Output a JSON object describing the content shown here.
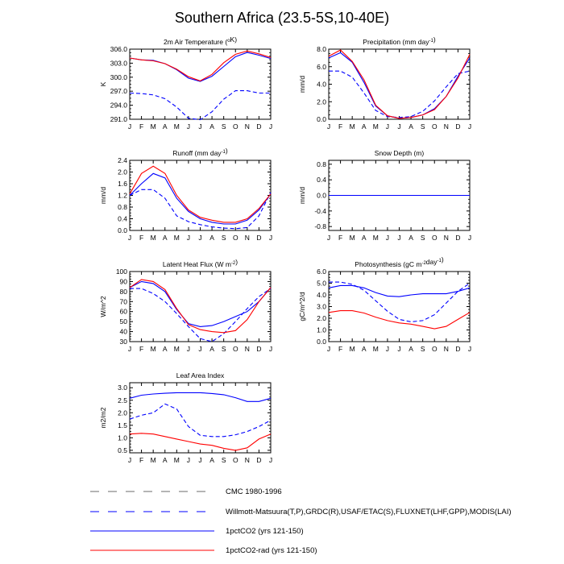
{
  "figure": {
    "title": "Southern Africa (23.5-5S,10-40E)"
  },
  "months": [
    "J",
    "F",
    "M",
    "A",
    "M",
    "J",
    "J",
    "A",
    "S",
    "O",
    "N",
    "D",
    "J"
  ],
  "colors": {
    "blue": "#0000ff",
    "red": "#ff0000",
    "cmc": "#6b6b6b"
  },
  "legend": [
    {
      "label": "CMC 1980-1996",
      "color": "#6b6b6b",
      "dash": "dashed"
    },
    {
      "label": "Willmott-Matsuura(T,P),GRDC(R),USAF/ETAC(S),FLUXNET(LHF,GPP),MODIS(LAI)",
      "color": "#0000ff",
      "dash": "dashed"
    },
    {
      "label": "1pctCO2 (yrs 121-150)",
      "color": "#0000ff",
      "dash": "solid"
    },
    {
      "label": "1pctCO2-rad (yrs 121-150)",
      "color": "#ff0000",
      "dash": "solid"
    }
  ],
  "chart_data": [
    {
      "type": "line",
      "title_main": "2m Air Temperature (",
      "title_sup": "o",
      "title_end": "K)",
      "ylabel": "K",
      "ylim": [
        291.0,
        306.0
      ],
      "yticks": [
        "291.0",
        "294.0",
        "297.0",
        "300.0",
        "303.0",
        "306.0"
      ],
      "yticks_values": [
        291.0,
        294.0,
        297.0,
        300.0,
        303.0,
        306.0
      ],
      "series": [
        {
          "values": [
            296.6,
            296.5,
            296.2,
            295.4,
            293.6,
            291.2,
            290.9,
            292.6,
            295.3,
            297.1,
            297.1,
            296.6,
            296.6
          ],
          "color": "#0000ff",
          "dash": "dashed"
        },
        {
          "values": [
            304.1,
            303.7,
            303.6,
            302.9,
            301.6,
            299.8,
            299.1,
            300.2,
            302.3,
            304.4,
            305.3,
            304.7,
            304.0
          ],
          "color": "#0000ff",
          "dash": "solid"
        },
        {
          "values": [
            304.1,
            303.7,
            303.5,
            302.9,
            301.7,
            300.1,
            299.2,
            300.6,
            303.1,
            304.9,
            305.6,
            305.0,
            304.2
          ],
          "color": "#ff0000",
          "dash": "solid"
        }
      ]
    },
    {
      "type": "line",
      "title_main": "Precipitation (mm day",
      "title_sup": "-1",
      "title_end": ")",
      "ylabel": "mm/d",
      "ylim": [
        0.0,
        8.0
      ],
      "yticks": [
        "0.0",
        "2.0",
        "4.0",
        "6.0",
        "8.0"
      ],
      "yticks_values": [
        0.0,
        2.0,
        4.0,
        6.0,
        8.0
      ],
      "series": [
        {
          "values": [
            5.5,
            5.5,
            4.8,
            3.0,
            1.0,
            0.3,
            0.2,
            0.3,
            0.9,
            2.1,
            3.7,
            5.2,
            5.5
          ],
          "color": "#0000ff",
          "dash": "dashed"
        },
        {
          "values": [
            7.0,
            7.6,
            6.5,
            4.2,
            1.5,
            0.4,
            0.1,
            0.2,
            0.5,
            1.2,
            2.6,
            4.9,
            7.0
          ],
          "color": "#0000ff",
          "dash": "solid"
        },
        {
          "values": [
            7.2,
            7.9,
            6.6,
            4.5,
            1.6,
            0.4,
            0.1,
            0.2,
            0.5,
            1.1,
            2.6,
            4.7,
            7.4
          ],
          "color": "#ff0000",
          "dash": "solid"
        }
      ]
    },
    {
      "type": "line",
      "title_main": "Runoff (mm day",
      "title_sup": "-1",
      "title_end": ")",
      "ylabel": "mm/d",
      "ylim": [
        0.0,
        2.4
      ],
      "yticks": [
        "0.0",
        "0.4",
        "0.8",
        "1.2",
        "1.6",
        "2.0",
        "2.4"
      ],
      "yticks_values": [
        0.0,
        0.4,
        0.8,
        1.2,
        1.6,
        2.0,
        2.4
      ],
      "series": [
        {
          "values": [
            1.2,
            1.4,
            1.4,
            1.1,
            0.5,
            0.3,
            0.2,
            0.12,
            0.08,
            0.06,
            0.1,
            0.5,
            1.3
          ],
          "color": "#0000ff",
          "dash": "dashed"
        },
        {
          "values": [
            1.2,
            1.6,
            1.95,
            1.8,
            1.1,
            0.65,
            0.4,
            0.28,
            0.22,
            0.22,
            0.35,
            0.7,
            1.25
          ],
          "color": "#0000ff",
          "dash": "solid"
        },
        {
          "values": [
            1.25,
            1.95,
            2.2,
            1.95,
            1.2,
            0.7,
            0.45,
            0.35,
            0.28,
            0.28,
            0.4,
            0.75,
            1.25
          ],
          "color": "#ff0000",
          "dash": "solid"
        }
      ]
    },
    {
      "type": "line",
      "title_main": "Snow Depth (m)",
      "title_sup": "",
      "title_end": "",
      "ylabel": "mm/d",
      "ylim": [
        -0.9,
        0.9
      ],
      "yticks": [
        "-0.8",
        "-0.4",
        "0.0",
        "0.4",
        "0.8"
      ],
      "yticks_values": [
        -0.8,
        -0.4,
        0.0,
        0.4,
        0.8
      ],
      "series": [
        {
          "values": [
            0,
            0,
            0,
            0,
            0,
            0,
            0,
            0,
            0,
            0,
            0,
            0,
            0
          ],
          "color": "#ff0000",
          "dash": "solid"
        },
        {
          "values": [
            0,
            0,
            0,
            0,
            0,
            0,
            0,
            0,
            0,
            0,
            0,
            0,
            0
          ],
          "color": "#0000ff",
          "dash": "solid"
        },
        {
          "values": [
            0,
            0,
            0,
            0,
            0,
            0,
            0,
            0,
            0,
            0,
            0,
            0,
            0
          ],
          "color": "#0000ff",
          "dash": "dashed"
        }
      ]
    },
    {
      "type": "line",
      "title_main": "Latent Heat Flux (W m",
      "title_sup": "-2",
      "title_end": ")",
      "ylabel": "W/m^2",
      "ylim": [
        30,
        100
      ],
      "yticks": [
        "30",
        "40",
        "50",
        "60",
        "70",
        "80",
        "90",
        "100"
      ],
      "yticks_values": [
        30,
        40,
        50,
        60,
        70,
        80,
        90,
        100
      ],
      "series": [
        {
          "values": [
            83,
            83,
            78,
            70,
            58,
            45,
            33,
            30,
            38,
            50,
            63,
            75,
            83
          ],
          "color": "#0000ff",
          "dash": "dashed"
        },
        {
          "values": [
            84,
            90,
            88,
            80,
            62,
            48,
            45,
            46,
            50,
            55,
            60,
            70,
            84
          ],
          "color": "#0000ff",
          "dash": "solid"
        },
        {
          "values": [
            84,
            92,
            90,
            82,
            63,
            47,
            42,
            40,
            39,
            41,
            52,
            70,
            84
          ],
          "color": "#ff0000",
          "dash": "solid"
        }
      ]
    },
    {
      "type": "line",
      "title_main": "Photosynthesis (gC m",
      "title_sup": "-2",
      "title_end": "day",
      "title_sup2": "-1",
      "title_end2": ")",
      "ylabel": "gC/m^2/d",
      "ylim": [
        0.0,
        6.0
      ],
      "yticks": [
        "0.0",
        "1.0",
        "2.0",
        "3.0",
        "4.0",
        "5.0",
        "6.0"
      ],
      "yticks_values": [
        0.0,
        1.0,
        2.0,
        3.0,
        4.0,
        5.0,
        6.0
      ],
      "series": [
        {
          "values": [
            5.1,
            5.1,
            4.9,
            4.4,
            3.5,
            2.6,
            1.9,
            1.7,
            1.8,
            2.3,
            3.3,
            4.3,
            5.0
          ],
          "color": "#0000ff",
          "dash": "dashed"
        },
        {
          "values": [
            4.6,
            4.8,
            4.8,
            4.6,
            4.2,
            3.9,
            3.85,
            4.0,
            4.1,
            4.1,
            4.1,
            4.3,
            4.6
          ],
          "color": "#0000ff",
          "dash": "solid"
        },
        {
          "values": [
            2.5,
            2.65,
            2.65,
            2.45,
            2.1,
            1.8,
            1.6,
            1.5,
            1.3,
            1.1,
            1.3,
            1.9,
            2.5
          ],
          "color": "#ff0000",
          "dash": "solid"
        }
      ]
    },
    {
      "type": "line",
      "title_main": "Leaf Area Index",
      "title_sup": "",
      "title_end": "",
      "ylabel": "m2/m2",
      "ylim": [
        0.4,
        3.2
      ],
      "yticks": [
        "0.5",
        "1.0",
        "1.5",
        "2.0",
        "2.5",
        "3.0"
      ],
      "yticks_values": [
        0.5,
        1.0,
        1.5,
        2.0,
        2.5,
        3.0
      ],
      "series": [
        {
          "values": [
            1.75,
            1.9,
            2.0,
            2.35,
            2.15,
            1.45,
            1.1,
            1.05,
            1.05,
            1.12,
            1.25,
            1.45,
            1.7
          ],
          "color": "#0000ff",
          "dash": "dashed"
        },
        {
          "values": [
            2.58,
            2.7,
            2.75,
            2.78,
            2.8,
            2.8,
            2.8,
            2.77,
            2.72,
            2.6,
            2.45,
            2.45,
            2.58
          ],
          "color": "#0000ff",
          "dash": "solid"
        },
        {
          "values": [
            1.15,
            1.18,
            1.15,
            1.05,
            0.95,
            0.85,
            0.75,
            0.7,
            0.58,
            0.5,
            0.6,
            0.95,
            1.15
          ],
          "color": "#ff0000",
          "dash": "solid"
        }
      ]
    }
  ]
}
